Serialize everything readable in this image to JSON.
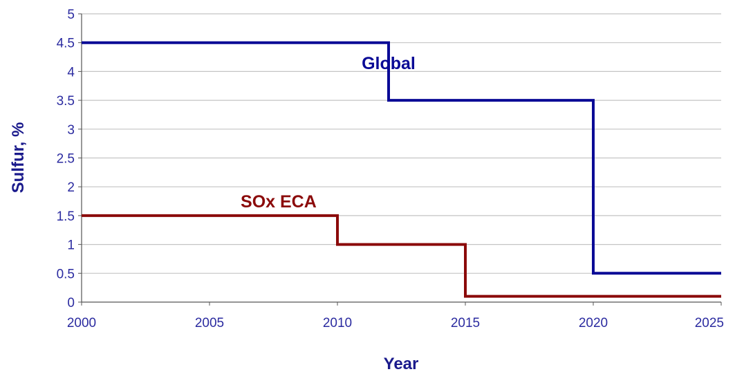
{
  "chart_data": {
    "type": "line",
    "step": true,
    "xlabel": "Year",
    "ylabel": "Sulfur, %",
    "xlim": [
      2000,
      2025
    ],
    "ylim": [
      0,
      5
    ],
    "xticks": [
      "2000",
      "2005",
      "2010",
      "2015",
      "2020",
      "2025"
    ],
    "yticks": [
      "0",
      "0.5",
      "1",
      "1.5",
      "2",
      "2.5",
      "3",
      "3.5",
      "4",
      "4.5",
      "5"
    ],
    "grid": "horizontal",
    "legend": "none",
    "series": [
      {
        "name": "Global",
        "color": "#0a0a96",
        "label_at": [
          2012.0,
          4.15
        ],
        "points": [
          [
            2000,
            4.5
          ],
          [
            2012,
            4.5
          ],
          [
            2012,
            3.5
          ],
          [
            2020,
            3.5
          ],
          [
            2020,
            0.5
          ],
          [
            2025,
            0.5
          ]
        ]
      },
      {
        "name": "SOx ECA",
        "color": "#8b0a0a",
        "label_at": [
          2007.7,
          1.75
        ],
        "points": [
          [
            2000,
            1.5
          ],
          [
            2010,
            1.5
          ],
          [
            2010,
            1.0
          ],
          [
            2015,
            1.0
          ],
          [
            2015,
            0.1
          ],
          [
            2025,
            0.1
          ]
        ]
      }
    ]
  }
}
